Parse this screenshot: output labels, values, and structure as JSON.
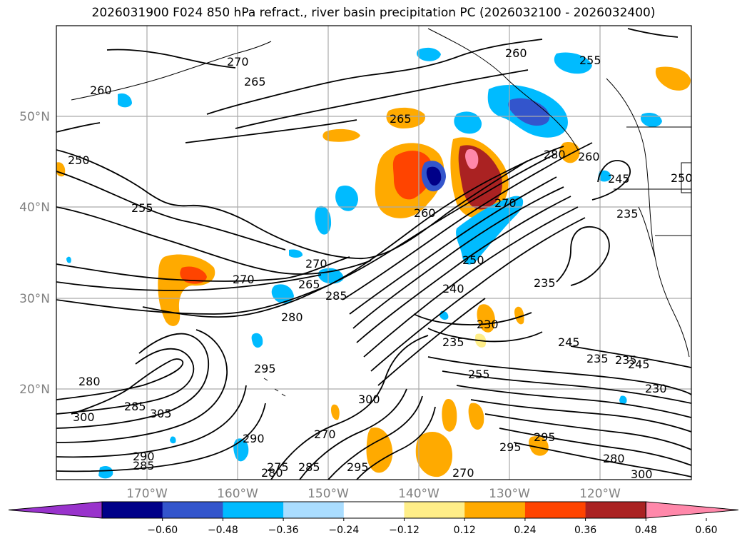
{
  "title": "2026031900 F024 850 hPa refract., river basin precipitation PC (2026032100 - 2026032400)",
  "lon_labels": [
    "170°W",
    "160°W",
    "150°W",
    "140°W",
    "130°W",
    "120°W"
  ],
  "lat_labels": [
    "50°N",
    "40°N",
    "30°N",
    "20°N"
  ],
  "colorbar": {
    "ticks": [
      "−0.60",
      "−0.48",
      "−0.36",
      "−0.24",
      "−0.12",
      "0.12",
      "0.24",
      "0.36",
      "0.48",
      "0.60"
    ],
    "colors": [
      "#9933cc",
      "#000088",
      "#3355cc",
      "#00bbff",
      "#aaddff",
      "#ffffff",
      "#ffee88",
      "#ffaa00",
      "#ff4400",
      "#aa2222",
      "#ff88aa"
    ]
  },
  "contour_labels": [
    "270",
    "265",
    "260",
    "250",
    "255",
    "260",
    "265",
    "255",
    "250",
    "245",
    "235",
    "235",
    "260",
    "280",
    "260",
    "270",
    "265",
    "280",
    "285",
    "270",
    "270",
    "240",
    "250",
    "235",
    "230",
    "235",
    "245",
    "235",
    "245",
    "230",
    "280",
    "295",
    "285",
    "300",
    "305",
    "290",
    "270",
    "285",
    "275",
    "280",
    "300",
    "295",
    "270",
    "295",
    "280",
    "295",
    "300",
    "255",
    "285",
    "290"
  ]
}
